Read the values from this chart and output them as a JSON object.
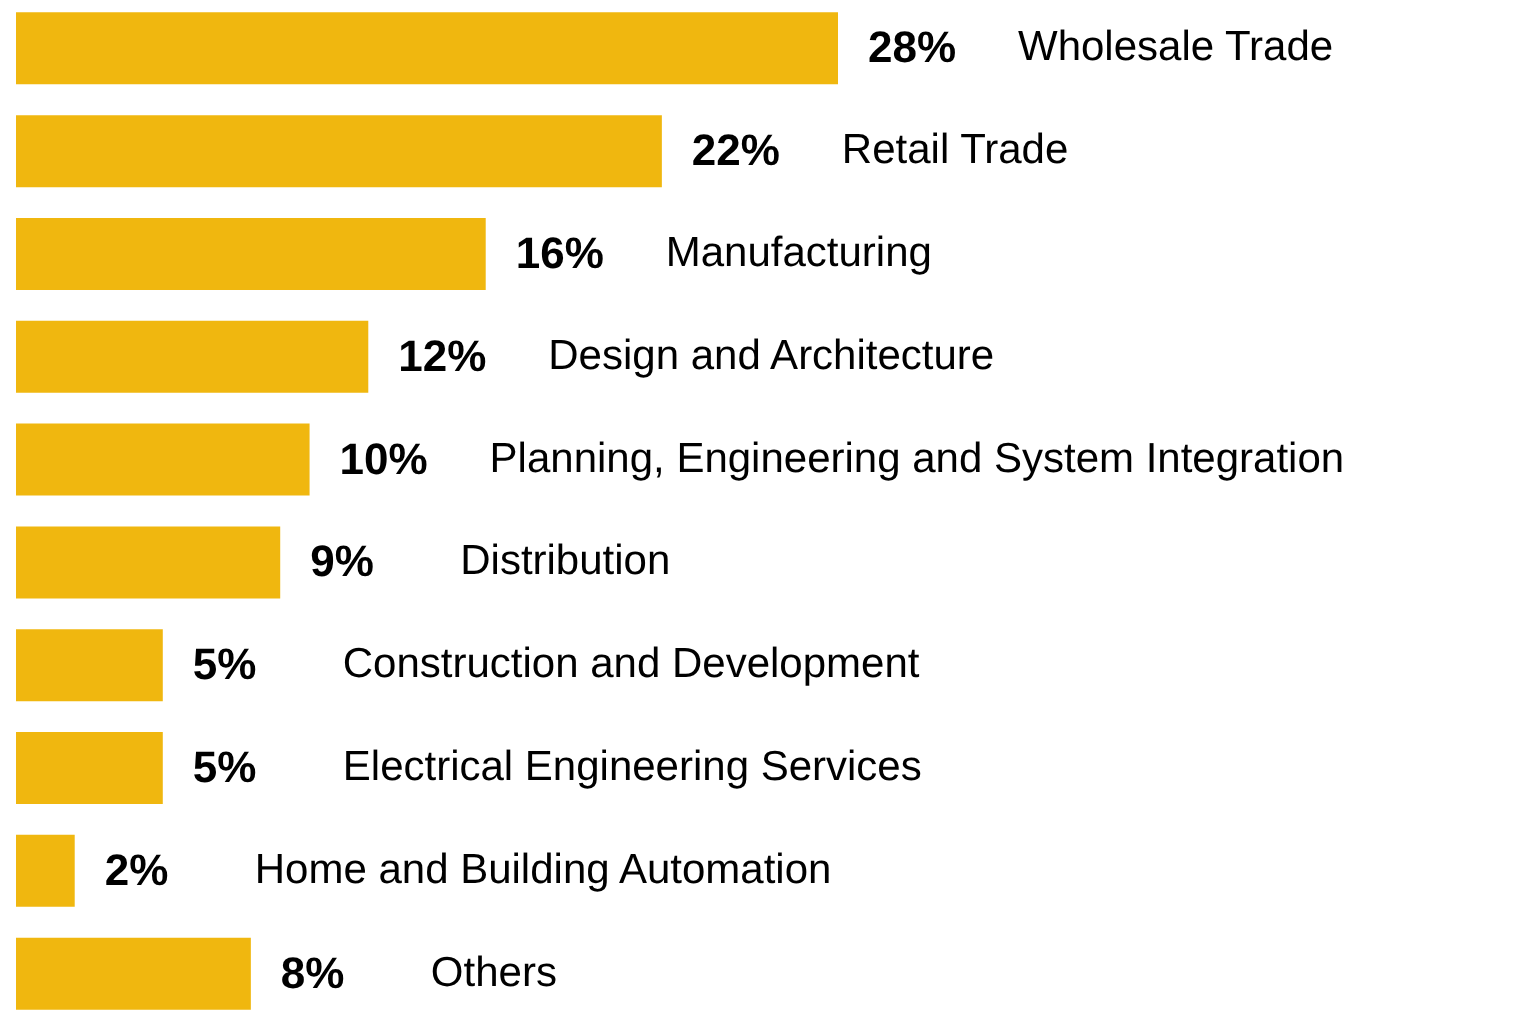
{
  "chart_data": {
    "type": "bar",
    "orientation": "horizontal",
    "categories": [
      "Wholesale Trade",
      "Retail Trade",
      "Manufacturing",
      "Design and Architecture",
      "Planning, Engineering and System Integration",
      "Distribution",
      "Construction and Development",
      "Electrical Engineering Services",
      "Home and Building Automation",
      "Others"
    ],
    "values": [
      28,
      22,
      16,
      12,
      10,
      9,
      5,
      5,
      2,
      8
    ],
    "value_labels": [
      "28%",
      "22%",
      "16%",
      "12%",
      "10%",
      "9%",
      "5%",
      "5%",
      "2%",
      "8%"
    ],
    "color": "#f0b70f"
  }
}
